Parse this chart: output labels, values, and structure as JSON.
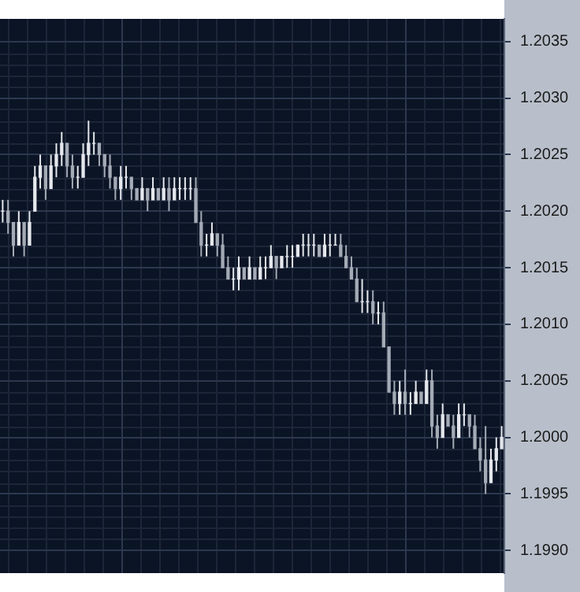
{
  "chart_data": {
    "type": "candlestick",
    "categories": [
      null,
      null,
      null,
      null,
      null,
      null,
      null,
      null,
      null,
      null,
      null,
      null,
      null,
      null,
      null,
      null,
      null,
      null,
      null,
      null,
      null,
      null,
      null,
      null,
      null,
      null,
      null,
      null,
      null,
      null,
      null,
      null,
      null,
      null,
      null,
      null,
      null,
      null,
      null,
      null,
      null,
      null,
      null,
      null,
      null,
      null,
      null,
      null,
      null,
      null,
      null,
      null,
      null,
      null,
      null,
      null,
      null,
      null,
      null,
      null,
      null,
      null,
      null,
      null,
      null,
      null,
      null,
      null,
      null,
      null,
      null,
      null,
      null,
      null,
      null,
      null,
      null,
      null,
      null,
      null,
      null,
      null,
      null,
      null,
      null,
      null,
      null,
      null,
      null,
      null,
      null,
      null,
      null,
      null
    ],
    "ohlc": [
      [
        1.202,
        1.2021,
        1.2019,
        1.202
      ],
      [
        1.202,
        1.2021,
        1.2018,
        1.2019
      ],
      [
        1.2019,
        1.2019,
        1.2016,
        1.2017
      ],
      [
        1.2017,
        1.202,
        1.2017,
        1.2019
      ],
      [
        1.2019,
        1.2019,
        1.2016,
        1.2017
      ],
      [
        1.2017,
        1.202,
        1.2017,
        1.2019
      ],
      [
        1.202,
        1.2024,
        1.202,
        1.2023
      ],
      [
        1.2023,
        1.2025,
        1.2022,
        1.2024
      ],
      [
        1.2024,
        1.2024,
        1.2021,
        1.2022
      ],
      [
        1.2022,
        1.2025,
        1.2022,
        1.2024
      ],
      [
        1.2024,
        1.2026,
        1.2023,
        1.2025
      ],
      [
        1.2025,
        1.2027,
        1.2024,
        1.2026
      ],
      [
        1.2026,
        1.2026,
        1.2023,
        1.2024
      ],
      [
        1.2024,
        1.2025,
        1.2022,
        1.2023
      ],
      [
        1.2023,
        1.2024,
        1.2022,
        1.2023
      ],
      [
        1.2023,
        1.2026,
        1.2023,
        1.2025
      ],
      [
        1.2025,
        1.2028,
        1.2024,
        1.2026
      ],
      [
        1.2026,
        1.2027,
        1.2025,
        1.2026
      ],
      [
        1.2026,
        1.2026,
        1.2024,
        1.2025
      ],
      [
        1.2025,
        1.2025,
        1.2023,
        1.2024
      ],
      [
        1.2024,
        1.2025,
        1.2022,
        1.2023
      ],
      [
        1.2023,
        1.2023,
        1.2021,
        1.2022
      ],
      [
        1.2022,
        1.2024,
        1.2021,
        1.2023
      ],
      [
        1.2023,
        1.2024,
        1.2022,
        1.2023
      ],
      [
        1.2023,
        1.2023,
        1.2021,
        1.2022
      ],
      [
        1.2022,
        1.2022,
        1.2021,
        1.2021
      ],
      [
        1.2021,
        1.2023,
        1.2021,
        1.2022
      ],
      [
        1.2022,
        1.2022,
        1.202,
        1.2021
      ],
      [
        1.2021,
        1.2023,
        1.2021,
        1.2022
      ],
      [
        1.2022,
        1.2022,
        1.2021,
        1.2021
      ],
      [
        1.2021,
        1.2023,
        1.2021,
        1.2022
      ],
      [
        1.2022,
        1.2023,
        1.202,
        1.2021
      ],
      [
        1.2021,
        1.2023,
        1.2021,
        1.2022
      ],
      [
        1.2022,
        1.2023,
        1.2021,
        1.2022
      ],
      [
        1.2022,
        1.2023,
        1.2021,
        1.2022
      ],
      [
        1.2022,
        1.2023,
        1.2021,
        1.2022
      ],
      [
        1.2022,
        1.2023,
        1.2019,
        1.2019
      ],
      [
        1.2019,
        1.202,
        1.2016,
        1.2017
      ],
      [
        1.2017,
        1.2018,
        1.2016,
        1.2017
      ],
      [
        1.2017,
        1.2019,
        1.2017,
        1.2018
      ],
      [
        1.2018,
        1.2018,
        1.2016,
        1.2017
      ],
      [
        1.2017,
        1.2018,
        1.2015,
        1.2015
      ],
      [
        1.2015,
        1.2016,
        1.2014,
        1.2014
      ],
      [
        1.2014,
        1.2015,
        1.2013,
        1.2014
      ],
      [
        1.2014,
        1.2016,
        1.2013,
        1.2015
      ],
      [
        1.2015,
        1.2015,
        1.2014,
        1.2014
      ],
      [
        1.2014,
        1.2016,
        1.2014,
        1.2015
      ],
      [
        1.2015,
        1.2015,
        1.2014,
        1.2014
      ],
      [
        1.2014,
        1.2016,
        1.2014,
        1.2015
      ],
      [
        1.2015,
        1.2016,
        1.2014,
        1.2015
      ],
      [
        1.2015,
        1.2017,
        1.2015,
        1.2016
      ],
      [
        1.2016,
        1.2016,
        1.2014,
        1.2015
      ],
      [
        1.2015,
        1.2016,
        1.2015,
        1.2016
      ],
      [
        1.2016,
        1.2017,
        1.2015,
        1.2016
      ],
      [
        1.2016,
        1.2017,
        1.2015,
        1.2016
      ],
      [
        1.2016,
        1.2017,
        1.2016,
        1.2017
      ],
      [
        1.2017,
        1.2018,
        1.2016,
        1.2017
      ],
      [
        1.2017,
        1.2018,
        1.2016,
        1.2017
      ],
      [
        1.2017,
        1.2018,
        1.2016,
        1.2017
      ],
      [
        1.2017,
        1.2017,
        1.2016,
        1.2016
      ],
      [
        1.2016,
        1.2018,
        1.2016,
        1.2017
      ],
      [
        1.2017,
        1.2018,
        1.2016,
        1.2017
      ],
      [
        1.2017,
        1.2018,
        1.2017,
        1.2017
      ],
      [
        1.2017,
        1.2018,
        1.2016,
        1.2016
      ],
      [
        1.2016,
        1.2017,
        1.2015,
        1.2015
      ],
      [
        1.2015,
        1.2016,
        1.2014,
        1.2014
      ],
      [
        1.2014,
        1.2015,
        1.2012,
        1.2012
      ],
      [
        1.2012,
        1.2014,
        1.2011,
        1.2012
      ],
      [
        1.2012,
        1.2013,
        1.2011,
        1.2012
      ],
      [
        1.2012,
        1.2013,
        1.201,
        1.2011
      ],
      [
        1.2011,
        1.2012,
        1.201,
        1.2011
      ],
      [
        1.2011,
        1.2012,
        1.2008,
        1.2008
      ],
      [
        1.2008,
        1.2008,
        1.2004,
        1.2004
      ],
      [
        1.2004,
        1.2005,
        1.2002,
        1.2003
      ],
      [
        1.2003,
        1.2005,
        1.2002,
        1.2004
      ],
      [
        1.2004,
        1.2006,
        1.2002,
        1.2003
      ],
      [
        1.2003,
        1.2004,
        1.2002,
        1.2003
      ],
      [
        1.2003,
        1.2005,
        1.2003,
        1.2004
      ],
      [
        1.2004,
        1.2004,
        1.2003,
        1.2003
      ],
      [
        1.2003,
        1.2006,
        1.2003,
        1.2005
      ],
      [
        1.2005,
        1.2006,
        1.2,
        1.2001
      ],
      [
        1.2001,
        1.2002,
        1.1999,
        1.2
      ],
      [
        1.2,
        1.2003,
        1.2,
        1.2002
      ],
      [
        1.2002,
        1.2002,
        1.2001,
        1.2001
      ],
      [
        1.2001,
        1.2002,
        1.1999,
        1.2
      ],
      [
        1.2,
        1.2003,
        1.2,
        1.2002
      ],
      [
        1.2002,
        1.2003,
        1.2001,
        1.2002
      ],
      [
        1.2002,
        1.2002,
        1.2,
        1.2001
      ],
      [
        1.2001,
        1.2002,
        1.1999,
        1.1999
      ],
      [
        1.1999,
        1.2,
        1.1997,
        1.1998
      ],
      [
        1.1998,
        1.2001,
        1.1995,
        1.1996
      ],
      [
        1.1996,
        1.1999,
        1.1996,
        1.1998
      ],
      [
        1.1998,
        1.2,
        1.1997,
        1.1999
      ],
      [
        1.1999,
        1.2001,
        1.1999,
        1.2
      ]
    ],
    "colors": [
      "#e4e7ec",
      "#a4abb6",
      "#a4abb6",
      "#e4e7ec",
      "#a4abb6",
      "#e4e7ec",
      "#e4e7ec",
      "#e4e7ec",
      "#a4abb6",
      "#e4e7ec",
      "#e4e7ec",
      "#e4e7ec",
      "#a4abb6",
      "#a4abb6",
      "#e4e7ec",
      "#e4e7ec",
      "#e4e7ec",
      "#e4e7ec",
      "#a4abb6",
      "#a4abb6",
      "#a4abb6",
      "#a4abb6",
      "#e4e7ec",
      "#e4e7ec",
      "#a4abb6",
      "#a4abb6",
      "#e4e7ec",
      "#a4abb6",
      "#e4e7ec",
      "#a4abb6",
      "#e4e7ec",
      "#a4abb6",
      "#e4e7ec",
      "#e4e7ec",
      "#e4e7ec",
      "#e4e7ec",
      "#a4abb6",
      "#a4abb6",
      "#e4e7ec",
      "#e4e7ec",
      "#a4abb6",
      "#a4abb6",
      "#a4abb6",
      "#e4e7ec",
      "#e4e7ec",
      "#a4abb6",
      "#e4e7ec",
      "#a4abb6",
      "#e4e7ec",
      "#e4e7ec",
      "#e4e7ec",
      "#a4abb6",
      "#e4e7ec",
      "#e4e7ec",
      "#e4e7ec",
      "#e4e7ec",
      "#e4e7ec",
      "#e4e7ec",
      "#e4e7ec",
      "#a4abb6",
      "#e4e7ec",
      "#e4e7ec",
      "#e4e7ec",
      "#a4abb6",
      "#a4abb6",
      "#a4abb6",
      "#a4abb6",
      "#e4e7ec",
      "#e4e7ec",
      "#a4abb6",
      "#e4e7ec",
      "#a4abb6",
      "#a4abb6",
      "#a4abb6",
      "#e4e7ec",
      "#a4abb6",
      "#e4e7ec",
      "#e4e7ec",
      "#a4abb6",
      "#e4e7ec",
      "#a4abb6",
      "#a4abb6",
      "#e4e7ec",
      "#a4abb6",
      "#a4abb6",
      "#e4e7ec",
      "#e4e7ec",
      "#a4abb6",
      "#a4abb6",
      "#a4abb6",
      "#a4abb6",
      "#e4e7ec",
      "#e4e7ec",
      "#e4e7ec"
    ],
    "ylim": [
      1.1988,
      1.2037
    ],
    "yticks": [
      {
        "value": 1.199,
        "label": "1.1990"
      },
      {
        "value": 1.1995,
        "label": "1.1995"
      },
      {
        "value": 1.2,
        "label": "1.2000"
      },
      {
        "value": 1.2005,
        "label": "1.2005"
      },
      {
        "value": 1.201,
        "label": "1.2010"
      },
      {
        "value": 1.2015,
        "label": "1.2015"
      },
      {
        "value": 1.202,
        "label": "1.2020"
      },
      {
        "value": 1.2025,
        "label": "1.2025"
      },
      {
        "value": 1.203,
        "label": "1.2030"
      },
      {
        "value": 1.2035,
        "label": "1.2035"
      }
    ],
    "grid": true,
    "tick_labels": "y"
  }
}
